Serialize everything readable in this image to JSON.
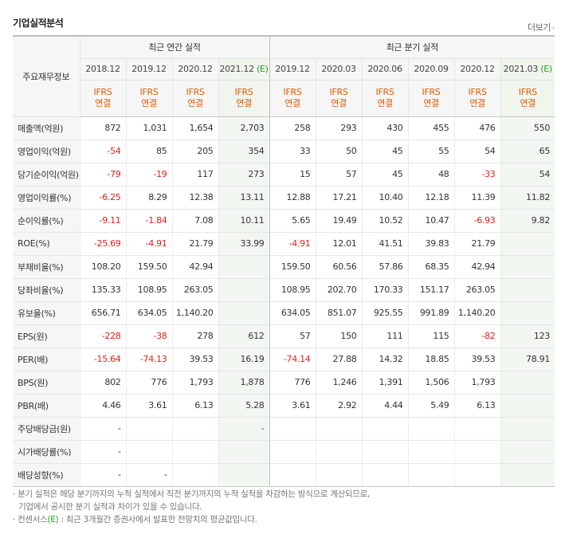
{
  "header": {
    "title": "기업실적분석",
    "more_label": "더보기",
    "more_arrow": "›"
  },
  "table": {
    "label_header": "주요재무정보",
    "group_annual": "최근 연간 실적",
    "group_quarter": "최근 분기 실적",
    "ifrs_line1": "IFRS",
    "ifrs_line2": "연결",
    "periods": [
      {
        "label": "2018.12",
        "est": ""
      },
      {
        "label": "2019.12",
        "est": ""
      },
      {
        "label": "2020.12",
        "est": ""
      },
      {
        "label": "2021.12",
        "est": "(E)"
      },
      {
        "label": "2019.12",
        "est": ""
      },
      {
        "label": "2020.03",
        "est": ""
      },
      {
        "label": "2020.06",
        "est": ""
      },
      {
        "label": "2020.09",
        "est": ""
      },
      {
        "label": "2020.12",
        "est": ""
      },
      {
        "label": "2021.03",
        "est": "(E)"
      }
    ],
    "rows": [
      {
        "label": "매출액(억원)",
        "group_start": true,
        "values": [
          "872",
          "1,031",
          "1,654",
          "2,703",
          "258",
          "293",
          "430",
          "455",
          "476",
          "550"
        ]
      },
      {
        "label": "영업이익(억원)",
        "values": [
          "-54",
          "85",
          "205",
          "354",
          "33",
          "50",
          "45",
          "55",
          "54",
          "65"
        ]
      },
      {
        "label": "당기순이익(억원)",
        "values": [
          "-79",
          "-19",
          "117",
          "273",
          "15",
          "57",
          "45",
          "48",
          "-33",
          "54"
        ]
      },
      {
        "label": "영업이익률(%)",
        "group_start": true,
        "values": [
          "-6.25",
          "8.29",
          "12.38",
          "13.11",
          "12.88",
          "17.21",
          "10.40",
          "12.18",
          "11.39",
          "11.82"
        ]
      },
      {
        "label": "순이익률(%)",
        "values": [
          "-9.11",
          "-1.84",
          "7.08",
          "10.11",
          "5.65",
          "19.49",
          "10.52",
          "10.47",
          "-6.93",
          "9.82"
        ]
      },
      {
        "label": "ROE(%)",
        "values": [
          "-25.69",
          "-4.91",
          "21.79",
          "33.99",
          "-4.91",
          "12.01",
          "41.51",
          "39.83",
          "21.79",
          ""
        ]
      },
      {
        "label": "부채비율(%)",
        "group_start": true,
        "values": [
          "108.20",
          "159.50",
          "42.94",
          "",
          "159.50",
          "60.56",
          "57.86",
          "68.35",
          "42.94",
          ""
        ]
      },
      {
        "label": "당좌비율(%)",
        "values": [
          "135.33",
          "108.95",
          "263.05",
          "",
          "108.95",
          "202.70",
          "170.33",
          "151.17",
          "263.05",
          ""
        ]
      },
      {
        "label": "유보율(%)",
        "values": [
          "656.71",
          "634.05",
          "1,140.20",
          "",
          "634.05",
          "851.07",
          "925.55",
          "991.89",
          "1,140.20",
          ""
        ]
      },
      {
        "label": "EPS(원)",
        "group_start": true,
        "values": [
          "-228",
          "-38",
          "278",
          "612",
          "57",
          "150",
          "111",
          "115",
          "-82",
          "123"
        ]
      },
      {
        "label": "PER(배)",
        "values": [
          "-15.64",
          "-74.13",
          "39.53",
          "16.19",
          "-74.14",
          "27.88",
          "14.32",
          "18.85",
          "39.53",
          "78.91"
        ]
      },
      {
        "label": "BPS(원)",
        "values": [
          "802",
          "776",
          "1,793",
          "1,878",
          "776",
          "1,246",
          "1,391",
          "1,506",
          "1,793",
          ""
        ]
      },
      {
        "label": "PBR(배)",
        "values": [
          "4.46",
          "3.61",
          "6.13",
          "5.28",
          "3.61",
          "2.92",
          "4.44",
          "5.49",
          "6.13",
          ""
        ]
      },
      {
        "label": "주당배당금(원)",
        "group_start": true,
        "values": [
          "-",
          "",
          "",
          "-",
          "",
          "",
          "",
          "",
          "",
          ""
        ]
      },
      {
        "label": "시가배당률(%)",
        "values": [
          "-",
          "",
          "",
          "",
          "",
          "",
          "",
          "",
          "",
          ""
        ]
      },
      {
        "label": "배당성향(%)",
        "values": [
          "-",
          "-",
          "",
          "",
          "",
          "",
          "",
          "",
          "",
          ""
        ]
      }
    ]
  },
  "notes": {
    "line1": "· 분기 실적은 해당 분기까지의 누적 실적에서 직전 분기까지의 누적 실적을 차감하는 방식으로 계산되므로,",
    "line2": "기업에서 공시한 분기 실적과 차이가 있을 수 있습니다.",
    "line3_prefix": "· 컨센서스",
    "line3_mark": "(E)",
    "line3_suffix": " : 최근 3개월간 증권사에서 발표한 전망치의 평균값입니다."
  }
}
